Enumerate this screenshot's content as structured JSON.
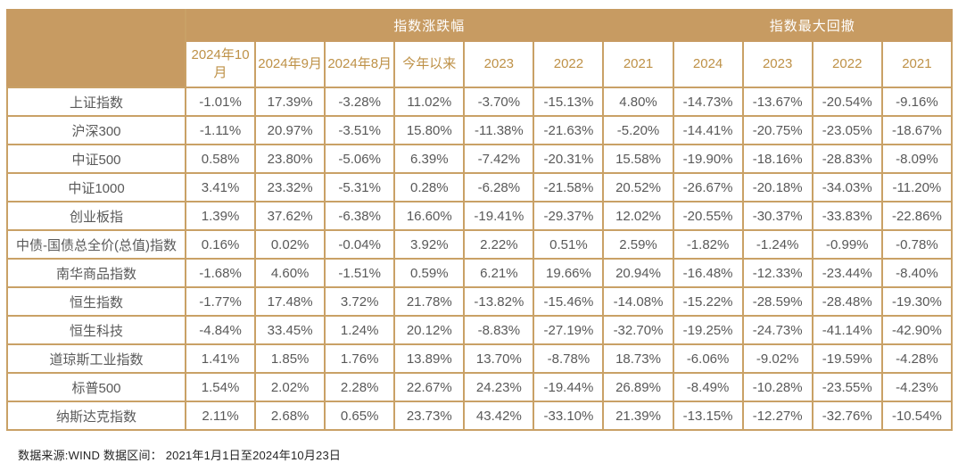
{
  "chart_data": {
    "type": "table",
    "title_groups": {
      "change": "指数涨跌幅",
      "drawdown": "指数最大回撤"
    },
    "columns_change": [
      "2024年10月",
      "2024年9月",
      "2024年8月",
      "今年以来",
      "2023",
      "2022",
      "2021"
    ],
    "columns_drawdown": [
      "2024",
      "2023",
      "2022",
      "2021"
    ],
    "rows": [
      {
        "label": "上证指数",
        "values": [
          "-1.01%",
          "17.39%",
          "-3.28%",
          "11.02%",
          "-3.70%",
          "-15.13%",
          "4.80%",
          "-14.73%",
          "-13.67%",
          "-20.54%",
          "-9.16%"
        ]
      },
      {
        "label": "沪深300",
        "values": [
          "-1.11%",
          "20.97%",
          "-3.51%",
          "15.80%",
          "-11.38%",
          "-21.63%",
          "-5.20%",
          "-14.41%",
          "-20.75%",
          "-23.05%",
          "-18.67%"
        ]
      },
      {
        "label": "中证500",
        "values": [
          "0.58%",
          "23.80%",
          "-5.06%",
          "6.39%",
          "-7.42%",
          "-20.31%",
          "15.58%",
          "-19.90%",
          "-18.16%",
          "-28.83%",
          "-8.09%"
        ]
      },
      {
        "label": "中证1000",
        "values": [
          "3.41%",
          "23.32%",
          "-5.31%",
          "0.28%",
          "-6.28%",
          "-21.58%",
          "20.52%",
          "-26.67%",
          "-20.18%",
          "-34.03%",
          "-11.20%"
        ]
      },
      {
        "label": "创业板指",
        "values": [
          "1.39%",
          "37.62%",
          "-6.38%",
          "16.60%",
          "-19.41%",
          "-29.37%",
          "12.02%",
          "-20.55%",
          "-30.37%",
          "-33.83%",
          "-22.86%"
        ]
      },
      {
        "label": "中债-国债总全价(总值)指数",
        "values": [
          "0.16%",
          "0.02%",
          "-0.04%",
          "3.92%",
          "2.22%",
          "0.51%",
          "2.59%",
          "-1.82%",
          "-1.24%",
          "-0.99%",
          "-0.78%"
        ]
      },
      {
        "label": "南华商品指数",
        "values": [
          "-1.68%",
          "4.60%",
          "-1.51%",
          "0.59%",
          "6.21%",
          "19.66%",
          "20.94%",
          "-16.48%",
          "-12.33%",
          "-23.44%",
          "-8.40%"
        ]
      },
      {
        "label": "恒生指数",
        "values": [
          "-1.77%",
          "17.48%",
          "3.72%",
          "21.78%",
          "-13.82%",
          "-15.46%",
          "-14.08%",
          "-15.22%",
          "-28.59%",
          "-28.48%",
          "-19.30%"
        ]
      },
      {
        "label": "恒生科技",
        "values": [
          "-4.84%",
          "33.45%",
          "1.24%",
          "20.12%",
          "-8.83%",
          "-27.19%",
          "-32.70%",
          "-19.25%",
          "-24.73%",
          "-41.14%",
          "-42.90%"
        ]
      },
      {
        "label": "道琼斯工业指数",
        "values": [
          "1.41%",
          "1.85%",
          "1.76%",
          "13.89%",
          "13.70%",
          "-8.78%",
          "18.73%",
          "-6.06%",
          "-9.02%",
          "-19.59%",
          "-4.28%"
        ]
      },
      {
        "label": "标普500",
        "values": [
          "1.54%",
          "2.02%",
          "2.28%",
          "22.67%",
          "24.23%",
          "-19.44%",
          "26.89%",
          "-8.49%",
          "-10.28%",
          "-23.55%",
          "-4.23%"
        ]
      },
      {
        "label": "纳斯达克指数",
        "values": [
          "2.11%",
          "2.68%",
          "0.65%",
          "23.73%",
          "43.42%",
          "-33.10%",
          "21.39%",
          "-13.15%",
          "-12.27%",
          "-32.76%",
          "-10.54%"
        ]
      }
    ]
  },
  "footer": {
    "note": "数据来源:WIND 数据区间： 2021年1月1日至2024年10月23日"
  },
  "colors": {
    "header_background": "#C79B62",
    "header_text": "#FFFFFF",
    "year_header_text": "#BE9147",
    "grid_border": "#C9A166",
    "cell_text": "#595959",
    "note_text": "#262626"
  }
}
